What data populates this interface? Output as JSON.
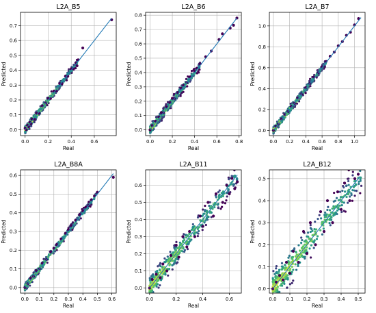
{
  "chart_data": [
    {
      "type": "scatter",
      "title": "L2A_B5",
      "xlabel": "Real",
      "ylabel": "Predicted",
      "xlim": [
        -0.04,
        0.79
      ],
      "ylim": [
        -0.04,
        0.79
      ],
      "xticks": [
        0.0,
        0.2,
        0.4,
        0.6
      ],
      "xtick_labels": [
        "0.0",
        "0.2",
        "0.4",
        "0.6"
      ],
      "yticks": [
        0.0,
        0.1,
        0.2,
        0.3,
        0.4,
        0.5,
        0.6,
        0.7
      ],
      "ytick_labels": [
        "0.0",
        "0.1",
        "0.2",
        "0.3",
        "0.4",
        "0.5",
        "0.6",
        "0.7"
      ],
      "grid": true,
      "trend": [
        [
          0.0,
          0.0
        ],
        [
          0.75,
          0.75
        ]
      ],
      "bulk": [
        0.0,
        0.45
      ],
      "spread": 0.012,
      "x": [
        0.0,
        0.01,
        0.02,
        0.03,
        0.04,
        0.05,
        0.06,
        0.08,
        0.1,
        0.12,
        0.15,
        0.18,
        0.2,
        0.22,
        0.25,
        0.27,
        0.3,
        0.32,
        0.35,
        0.37,
        0.4,
        0.42,
        0.44,
        0.45,
        0.46,
        0.5,
        0.75
      ],
      "y": [
        0.01,
        0.0,
        0.03,
        0.02,
        0.05,
        0.04,
        0.07,
        0.07,
        0.11,
        0.11,
        0.16,
        0.18,
        0.21,
        0.21,
        0.26,
        0.26,
        0.31,
        0.31,
        0.36,
        0.36,
        0.41,
        0.41,
        0.45,
        0.43,
        0.47,
        0.55,
        0.74
      ]
    },
    {
      "type": "scatter",
      "title": "L2A_B6",
      "xlabel": "Real",
      "ylabel": "Predicted",
      "xlim": [
        -0.04,
        0.82
      ],
      "ylim": [
        -0.04,
        0.82
      ],
      "xticks": [
        0.0,
        0.2,
        0.4,
        0.6,
        0.8
      ],
      "xtick_labels": [
        "0.0",
        "0.2",
        "0.4",
        "0.6",
        "0.8"
      ],
      "yticks": [
        0.0,
        0.1,
        0.2,
        0.3,
        0.4,
        0.5,
        0.6,
        0.7,
        0.8
      ],
      "ytick_labels": [
        "0.0",
        "0.1",
        "0.2",
        "0.3",
        "0.4",
        "0.5",
        "0.6",
        "0.7",
        "0.8"
      ],
      "grid": true,
      "trend": [
        [
          0.0,
          0.0
        ],
        [
          0.78,
          0.78
        ]
      ],
      "bulk": [
        0.0,
        0.45
      ],
      "spread": 0.014,
      "x": [
        0.0,
        0.02,
        0.05,
        0.08,
        0.1,
        0.12,
        0.15,
        0.18,
        0.2,
        0.22,
        0.25,
        0.28,
        0.3,
        0.33,
        0.36,
        0.4,
        0.42,
        0.45,
        0.5,
        0.55,
        0.62,
        0.65,
        0.72,
        0.75,
        0.78
      ],
      "y": [
        0.0,
        0.03,
        0.06,
        0.09,
        0.12,
        0.12,
        0.16,
        0.19,
        0.22,
        0.22,
        0.26,
        0.29,
        0.31,
        0.33,
        0.37,
        0.41,
        0.43,
        0.46,
        0.51,
        0.55,
        0.63,
        0.67,
        0.71,
        0.73,
        0.78
      ]
    },
    {
      "type": "scatter",
      "title": "L2A_B7",
      "xlabel": "Real",
      "ylabel": "Predicted",
      "xlim": [
        -0.05,
        1.13
      ],
      "ylim": [
        -0.05,
        1.13
      ],
      "xticks": [
        0.0,
        0.2,
        0.4,
        0.6,
        0.8,
        1.0
      ],
      "xtick_labels": [
        "0.0",
        "0.2",
        "0.4",
        "0.6",
        "0.8",
        "1.0"
      ],
      "yticks": [
        0.0,
        0.2,
        0.4,
        0.6,
        0.8,
        1.0
      ],
      "ytick_labels": [
        "0.0",
        "0.2",
        "0.4",
        "0.6",
        "0.8",
        "1.0"
      ],
      "grid": true,
      "trend": [
        [
          0.0,
          0.0
        ],
        [
          1.08,
          1.08
        ]
      ],
      "bulk": [
        0.0,
        0.65
      ],
      "spread": 0.016,
      "x": [
        0.0,
        0.03,
        0.06,
        0.1,
        0.14,
        0.18,
        0.22,
        0.26,
        0.3,
        0.35,
        0.4,
        0.45,
        0.5,
        0.55,
        0.6,
        0.65,
        0.7,
        0.75,
        0.8,
        0.85,
        0.9,
        0.95,
        1.0,
        1.05
      ],
      "y": [
        0.0,
        0.04,
        0.06,
        0.11,
        0.15,
        0.18,
        0.23,
        0.26,
        0.31,
        0.35,
        0.41,
        0.45,
        0.51,
        0.55,
        0.61,
        0.66,
        0.71,
        0.75,
        0.81,
        0.85,
        0.91,
        0.94,
        1.01,
        1.07
      ]
    },
    {
      "type": "scatter",
      "title": "L2A_B8A",
      "xlabel": "Real",
      "ylabel": "Predicted",
      "xlim": [
        -0.03,
        0.63
      ],
      "ylim": [
        -0.03,
        0.63
      ],
      "xticks": [
        0.0,
        0.1,
        0.2,
        0.3,
        0.4,
        0.5,
        0.6
      ],
      "xtick_labels": [
        "0.0",
        "0.1",
        "0.2",
        "0.3",
        "0.4",
        "0.5",
        "0.6"
      ],
      "yticks": [
        0.0,
        0.1,
        0.2,
        0.3,
        0.4,
        0.5,
        0.6
      ],
      "ytick_labels": [
        "0.0",
        "0.1",
        "0.2",
        "0.3",
        "0.4",
        "0.5",
        "0.6"
      ],
      "grid": true,
      "trend": [
        [
          0.0,
          0.0
        ],
        [
          0.61,
          0.61
        ]
      ],
      "bulk": [
        0.0,
        0.5
      ],
      "spread": 0.009,
      "x": [
        0.0,
        0.02,
        0.04,
        0.06,
        0.08,
        0.1,
        0.12,
        0.15,
        0.18,
        0.2,
        0.22,
        0.25,
        0.28,
        0.3,
        0.32,
        0.35,
        0.38,
        0.4,
        0.42,
        0.44,
        0.46,
        0.48,
        0.5,
        0.61
      ],
      "y": [
        0.0,
        0.02,
        0.05,
        0.06,
        0.09,
        0.1,
        0.13,
        0.15,
        0.19,
        0.21,
        0.23,
        0.26,
        0.29,
        0.31,
        0.33,
        0.36,
        0.39,
        0.41,
        0.43,
        0.44,
        0.47,
        0.49,
        0.51,
        0.59
      ]
    },
    {
      "type": "scatter",
      "title": "L2A_B11",
      "xlabel": "Real",
      "ylabel": "Predicted",
      "xlim": [
        -0.03,
        0.69
      ],
      "ylim": [
        -0.03,
        0.69
      ],
      "xticks": [
        0.0,
        0.2,
        0.4,
        0.6
      ],
      "xtick_labels": [
        "0.0",
        "0.2",
        "0.4",
        "0.6"
      ],
      "yticks": [
        0.0,
        0.1,
        0.2,
        0.3,
        0.4,
        0.5,
        0.6
      ],
      "ytick_labels": [
        "0.0",
        "0.1",
        "0.2",
        "0.3",
        "0.4",
        "0.5",
        "0.6"
      ],
      "grid": true,
      "trend": [
        [
          0.0,
          0.0
        ],
        [
          0.66,
          0.66
        ]
      ],
      "bulk": [
        0.0,
        0.66
      ],
      "spread": 0.03,
      "x": [
        0.0,
        0.02,
        0.05,
        0.08,
        0.1,
        0.13,
        0.16,
        0.2,
        0.22,
        0.25,
        0.28,
        0.3,
        0.34,
        0.38,
        0.4,
        0.44,
        0.48,
        0.5,
        0.55,
        0.58,
        0.6,
        0.62,
        0.64,
        0.66
      ],
      "y": [
        0.0,
        0.05,
        0.08,
        0.06,
        0.14,
        0.1,
        0.19,
        0.25,
        0.18,
        0.3,
        0.24,
        0.33,
        0.3,
        0.42,
        0.36,
        0.5,
        0.42,
        0.55,
        0.5,
        0.6,
        0.55,
        0.64,
        0.58,
        0.62
      ]
    },
    {
      "type": "scatter",
      "title": "L2A_B12",
      "xlabel": "Real",
      "ylabel": "Predicted",
      "xlim": [
        -0.02,
        0.54
      ],
      "ylim": [
        -0.02,
        0.54
      ],
      "xticks": [
        0.0,
        0.1,
        0.2,
        0.3,
        0.4,
        0.5
      ],
      "xtick_labels": [
        "0.0",
        "0.1",
        "0.2",
        "0.3",
        "0.4",
        "0.5"
      ],
      "yticks": [
        0.0,
        0.1,
        0.2,
        0.3,
        0.4,
        0.5
      ],
      "ytick_labels": [
        "0.0",
        "0.1",
        "0.2",
        "0.3",
        "0.4",
        "0.5"
      ],
      "grid": true,
      "trend": [
        [
          0.0,
          0.0
        ],
        [
          0.51,
          0.51
        ]
      ],
      "bulk": [
        0.0,
        0.52
      ],
      "spread": 0.035,
      "x": [
        0.0,
        0.02,
        0.04,
        0.06,
        0.08,
        0.1,
        0.12,
        0.15,
        0.18,
        0.2,
        0.22,
        0.25,
        0.28,
        0.3,
        0.32,
        0.35,
        0.38,
        0.4,
        0.42,
        0.45,
        0.48,
        0.5
      ],
      "y": [
        0.0,
        0.03,
        0.06,
        0.04,
        0.12,
        0.07,
        0.17,
        0.12,
        0.26,
        0.16,
        0.3,
        0.2,
        0.35,
        0.26,
        0.4,
        0.3,
        0.44,
        0.36,
        0.48,
        0.4,
        0.5,
        0.52
      ]
    }
  ],
  "colors": {
    "trend_line": "#1f77b4",
    "grid": "#b0b0b0",
    "viridis": [
      "#440154",
      "#3b528b",
      "#21918c",
      "#5ec962",
      "#fde725"
    ]
  }
}
